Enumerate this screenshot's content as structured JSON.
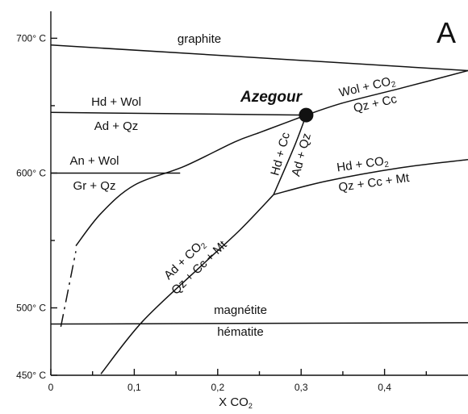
{
  "panel_label": "A",
  "x_axis": {
    "title_main": "X CO",
    "title_sub": "2",
    "ticks": [
      {
        "value": 0.0,
        "label": "0"
      },
      {
        "value": 0.1,
        "label": "0,1"
      },
      {
        "value": 0.2,
        "label": "0,2"
      },
      {
        "value": 0.3,
        "label": "0,3"
      },
      {
        "value": 0.4,
        "label": "0,4"
      }
    ],
    "minor_ticks": [
      0.05,
      0.15,
      0.25,
      0.35,
      0.45
    ],
    "range": [
      0,
      0.5
    ]
  },
  "y_axis": {
    "ticks": [
      {
        "value": 450,
        "label": "450° C"
      },
      {
        "value": 500,
        "label": "500° C"
      },
      {
        "value": 600,
        "label": "600° C"
      },
      {
        "value": 700,
        "label": "700° C"
      }
    ],
    "minor_ticks": [
      550,
      650
    ],
    "range": [
      450,
      720
    ]
  },
  "invariant_point": {
    "name": "Azegour",
    "x": 0.306,
    "t": 643
  },
  "reactions": [
    {
      "id": "graphite",
      "points": [
        [
          0,
          695
        ],
        [
          0.5,
          676
        ]
      ]
    },
    {
      "id": "wol-co2",
      "points": [
        [
          0.306,
          643
        ],
        [
          0.35,
          652
        ],
        [
          0.42,
          663
        ],
        [
          0.5,
          676
        ]
      ]
    },
    {
      "id": "hd-wol",
      "points": [
        [
          0,
          645
        ],
        [
          0.306,
          643
        ]
      ]
    },
    {
      "id": "an-wol",
      "points": [
        [
          0,
          600
        ],
        [
          0.155,
          600
        ]
      ]
    },
    {
      "id": "hd-cc",
      "points": [
        [
          0.306,
          643
        ],
        [
          0.292,
          620
        ],
        [
          0.267,
          584
        ]
      ]
    },
    {
      "id": "hd-co2",
      "points": [
        [
          0.267,
          584
        ],
        [
          0.33,
          594
        ],
        [
          0.42,
          604
        ],
        [
          0.5,
          610
        ]
      ]
    },
    {
      "id": "ad-co2",
      "points": [
        [
          0.06,
          451
        ],
        [
          0.11,
          490
        ],
        [
          0.18,
          531
        ],
        [
          0.227,
          558
        ],
        [
          0.267,
          584
        ]
      ]
    },
    {
      "id": "ad-qz-wollastonite",
      "points": [
        [
          0.03,
          546
        ],
        [
          0.06,
          570
        ],
        [
          0.1,
          591
        ],
        [
          0.16,
          605
        ],
        [
          0.22,
          623
        ],
        [
          0.25,
          630
        ],
        [
          0.28,
          637
        ],
        [
          0.306,
          643
        ]
      ]
    },
    {
      "id": "magnetite-hematite",
      "points": [
        [
          0,
          488
        ],
        [
          0.5,
          489
        ]
      ]
    }
  ],
  "dashed_extension": {
    "points": [
      [
        0.012,
        486
      ],
      [
        0.03,
        542
      ]
    ]
  },
  "labels": {
    "graphite": "graphite",
    "hd_wol": "Hd + Wol",
    "ad_qz": "Ad + Qz",
    "an_wol": "An + Wol",
    "gr_qz": "Gr + Qz",
    "azegour": "Azegour",
    "wol_co2_main": "Wol + CO",
    "wol_co2_sub": "2",
    "qz_cc": "Qz + Cc",
    "hd_cc": "Hd + Cc",
    "ad_qz_steep": "Ad + Qz",
    "hd_co2_main": "Hd + CO",
    "hd_co2_sub": "2",
    "qz_cc_mt": "Qz + Cc + Mt",
    "ad_co2_main": "Ad + CO",
    "ad_co2_sub": "2",
    "qz_cc_mt_lower": "Qz + Cc + Mt",
    "magnetite": "magnétite",
    "hematite": "hématite"
  }
}
